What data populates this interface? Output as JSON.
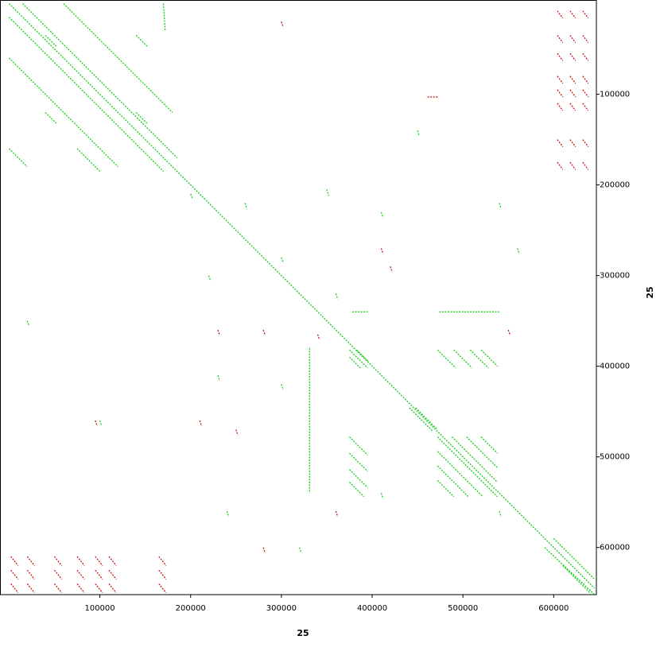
{
  "chart_data": {
    "type": "dotplot",
    "x_label": "25",
    "y_label": "25",
    "xlim": [
      -10000,
      647000
    ],
    "ylim": [
      -4000,
      652000
    ],
    "xticks": [
      100000,
      200000,
      300000,
      400000,
      500000,
      600000
    ],
    "yticks": [
      100000,
      200000,
      300000,
      400000,
      500000,
      600000
    ],
    "series": [
      {
        "color": "#00cc00",
        "values": [
          [
            0,
            0,
            645000,
            645000
          ],
          [
            375000,
            382000,
            395000,
            402000
          ],
          [
            375000,
            390000,
            387000,
            402000
          ],
          [
            383000,
            382000,
            395000,
            394000
          ],
          [
            472000,
            382000,
            492000,
            402000
          ],
          [
            490000,
            382000,
            510000,
            402000
          ],
          [
            508000,
            382000,
            528000,
            402000
          ],
          [
            520000,
            382000,
            538000,
            400000
          ],
          [
            375000,
            478000,
            395000,
            498000
          ],
          [
            375000,
            496000,
            395000,
            516000
          ],
          [
            375000,
            514000,
            395000,
            534000
          ],
          [
            375000,
            528000,
            391000,
            544000
          ],
          [
            472000,
            478000,
            538000,
            544000
          ],
          [
            472000,
            494000,
            522000,
            544000
          ],
          [
            472000,
            510000,
            506000,
            544000
          ],
          [
            472000,
            526000,
            490000,
            544000
          ],
          [
            488000,
            478000,
            538000,
            528000
          ],
          [
            504000,
            478000,
            538000,
            512000
          ],
          [
            520000,
            478000,
            538000,
            496000
          ],
          [
            441000,
            446000,
            467000,
            472000
          ],
          [
            448000,
            446000,
            472000,
            470000
          ],
          [
            474000,
            340000,
            540000,
            340000
          ],
          [
            378000,
            340000,
            395000,
            340000
          ],
          [
            331000,
            380000,
            331000,
            540000
          ],
          [
            0,
            15000,
            170000,
            185000
          ],
          [
            15000,
            0,
            185000,
            170000
          ],
          [
            0,
            60000,
            120000,
            180000
          ],
          [
            60000,
            0,
            180000,
            120000
          ],
          [
            40000,
            35000,
            52000,
            47000
          ],
          [
            140000,
            35000,
            152000,
            47000
          ],
          [
            40000,
            120000,
            52000,
            132000
          ],
          [
            140000,
            120000,
            152000,
            132000
          ],
          [
            0,
            160000,
            20000,
            180000
          ],
          [
            170000,
            0,
            172000,
            30000
          ],
          [
            75000,
            160000,
            100000,
            185000
          ],
          [
            590000,
            600000,
            645000,
            652000
          ],
          [
            600000,
            590000,
            645000,
            635000
          ],
          [
            610000,
            620000,
            640000,
            650000
          ],
          [
            200000,
            210000,
            202000,
            215000
          ],
          [
            260000,
            220000,
            262000,
            226000
          ],
          [
            350000,
            205000,
            352000,
            212000
          ],
          [
            410000,
            230000,
            412000,
            236000
          ],
          [
            220000,
            300000,
            222000,
            306000
          ],
          [
            300000,
            280000,
            302000,
            286000
          ],
          [
            360000,
            320000,
            362000,
            326000
          ],
          [
            540000,
            220000,
            542000,
            226000
          ],
          [
            560000,
            270000,
            562000,
            276000
          ],
          [
            230000,
            410000,
            232000,
            416000
          ],
          [
            300000,
            420000,
            302000,
            426000
          ],
          [
            410000,
            540000,
            412000,
            546000
          ],
          [
            240000,
            560000,
            242000,
            566000
          ],
          [
            320000,
            600000,
            322000,
            606000
          ],
          [
            540000,
            560000,
            542000,
            566000
          ],
          [
            20000,
            350000,
            22000,
            356000
          ],
          [
            100000,
            460000,
            102000,
            466000
          ],
          [
            450000,
            140000,
            452000,
            146000
          ]
        ]
      },
      {
        "color": "#cc0000",
        "values": [
          [
            604000,
            8000,
            610000,
            16000
          ],
          [
            618000,
            8000,
            624000,
            16000
          ],
          [
            632000,
            8000,
            638000,
            16000
          ],
          [
            604000,
            35000,
            610000,
            43000
          ],
          [
            618000,
            35000,
            624000,
            43000
          ],
          [
            632000,
            35000,
            638000,
            43000
          ],
          [
            604000,
            55000,
            610000,
            63000
          ],
          [
            618000,
            55000,
            624000,
            63000
          ],
          [
            632000,
            55000,
            638000,
            63000
          ],
          [
            604000,
            80000,
            610000,
            88000
          ],
          [
            618000,
            80000,
            624000,
            88000
          ],
          [
            632000,
            80000,
            638000,
            88000
          ],
          [
            604000,
            95000,
            610000,
            103000
          ],
          [
            618000,
            95000,
            624000,
            103000
          ],
          [
            632000,
            95000,
            638000,
            103000
          ],
          [
            604000,
            110000,
            610000,
            118000
          ],
          [
            618000,
            110000,
            624000,
            118000
          ],
          [
            632000,
            110000,
            638000,
            118000
          ],
          [
            604000,
            150000,
            610000,
            158000
          ],
          [
            618000,
            150000,
            624000,
            158000
          ],
          [
            632000,
            150000,
            638000,
            158000
          ],
          [
            604000,
            175000,
            610000,
            183000
          ],
          [
            618000,
            175000,
            624000,
            183000
          ],
          [
            632000,
            175000,
            638000,
            183000
          ],
          [
            2000,
            610000,
            10000,
            620000
          ],
          [
            20000,
            610000,
            28000,
            620000
          ],
          [
            50000,
            610000,
            58000,
            620000
          ],
          [
            75000,
            610000,
            83000,
            620000
          ],
          [
            95000,
            610000,
            103000,
            620000
          ],
          [
            110000,
            610000,
            118000,
            620000
          ],
          [
            165000,
            610000,
            173000,
            620000
          ],
          [
            2000,
            625000,
            10000,
            635000
          ],
          [
            20000,
            625000,
            28000,
            635000
          ],
          [
            50000,
            625000,
            58000,
            635000
          ],
          [
            75000,
            625000,
            83000,
            635000
          ],
          [
            95000,
            625000,
            103000,
            635000
          ],
          [
            110000,
            625000,
            118000,
            635000
          ],
          [
            165000,
            625000,
            173000,
            635000
          ],
          [
            2000,
            640000,
            10000,
            650000
          ],
          [
            20000,
            640000,
            28000,
            650000
          ],
          [
            50000,
            640000,
            58000,
            650000
          ],
          [
            75000,
            640000,
            83000,
            650000
          ],
          [
            95000,
            640000,
            103000,
            650000
          ],
          [
            110000,
            640000,
            118000,
            650000
          ],
          [
            165000,
            640000,
            173000,
            650000
          ],
          [
            461000,
            103000,
            472000,
            103000
          ],
          [
            420000,
            290000,
            422000,
            296000
          ],
          [
            230000,
            360000,
            232000,
            366000
          ],
          [
            280000,
            360000,
            282000,
            366000
          ],
          [
            340000,
            365000,
            342000,
            371000
          ],
          [
            360000,
            560000,
            362000,
            566000
          ],
          [
            210000,
            460000,
            212000,
            466000
          ],
          [
            250000,
            470000,
            252000,
            476000
          ],
          [
            550000,
            360000,
            552000,
            366000
          ],
          [
            95000,
            460000,
            97000,
            466000
          ],
          [
            300000,
            20000,
            302000,
            26000
          ],
          [
            410000,
            270000,
            412000,
            276000
          ],
          [
            280000,
            600000,
            282000,
            606000
          ]
        ]
      }
    ]
  }
}
